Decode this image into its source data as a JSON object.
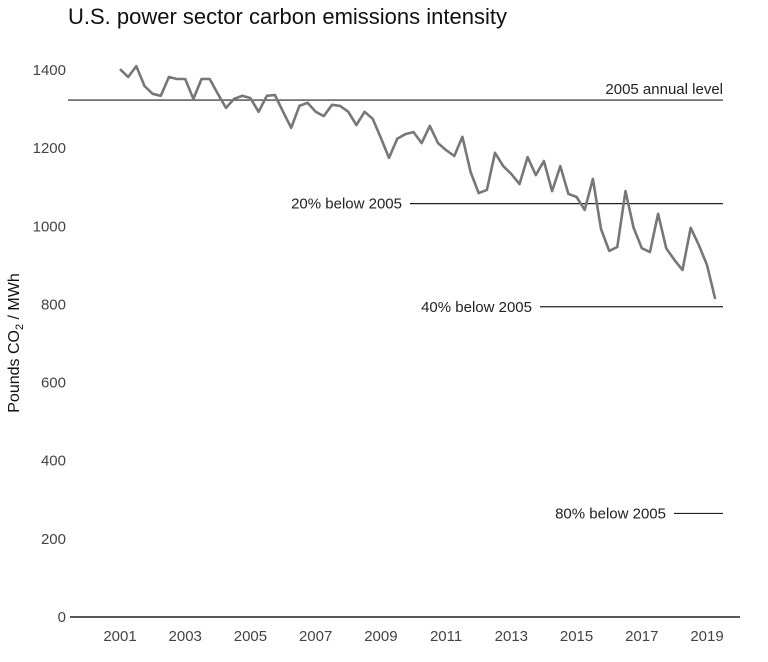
{
  "chart_data": {
    "type": "line",
    "title": "U.S. power sector carbon emissions intensity",
    "ylabel": "Pounds CO",
    "ylabel_sub": "2",
    "ylabel_suffix": " / MWh",
    "ylim": [
      0,
      1400
    ],
    "xlim": [
      2000.5,
      2020
    ],
    "yticks": [
      "0",
      "200",
      "400",
      "600",
      "800",
      "1000",
      "1200",
      "1400"
    ],
    "xticks": [
      "2001",
      "2003",
      "2005",
      "2007",
      "2009",
      "2011",
      "2013",
      "2015",
      "2017",
      "2019"
    ],
    "grid": false,
    "x_start": 2001,
    "x_step": 0.25,
    "values": [
      1402,
      1382,
      1410,
      1359,
      1339,
      1334,
      1382,
      1377,
      1377,
      1326,
      1377,
      1377,
      1339,
      1303,
      1326,
      1334,
      1328,
      1293,
      1334,
      1336,
      1293,
      1252,
      1308,
      1316,
      1293,
      1282,
      1311,
      1308,
      1293,
      1259,
      1293,
      1275,
      1226,
      1175,
      1224,
      1236,
      1241,
      1213,
      1257,
      1213,
      1195,
      1180,
      1229,
      1139,
      1085,
      1093,
      1188,
      1154,
      1134,
      1108,
      1177,
      1131,
      1167,
      1090,
      1154,
      1083,
      1075,
      1042,
      1121,
      993,
      937,
      947,
      1090,
      996,
      944,
      934,
      1032,
      944,
      914,
      888,
      996,
      952,
      901,
      814
    ],
    "line_color": "#777777",
    "reference_lines": [
      {
        "label": "2005 annual level",
        "value": 1323
      },
      {
        "label": "20% below 2005",
        "value": 1058
      },
      {
        "label": "40% below 2005",
        "value": 794
      },
      {
        "label": "80% below 2005",
        "value": 265
      }
    ]
  }
}
